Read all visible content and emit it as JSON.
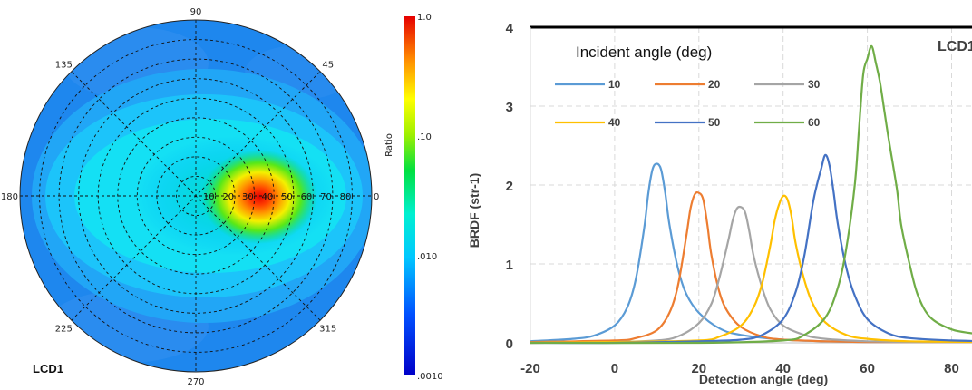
{
  "polar_plot": {
    "label": "LCD1",
    "angle_ticks": [
      {
        "angle": 90,
        "text": "90"
      },
      {
        "angle": 45,
        "text": "45"
      },
      {
        "angle": 0,
        "text": "0"
      },
      {
        "angle": 315,
        "text": "315"
      },
      {
        "angle": 270,
        "text": "270"
      },
      {
        "angle": 225,
        "text": "225"
      },
      {
        "angle": 180,
        "text": "180"
      },
      {
        "angle": 135,
        "text": "135"
      }
    ],
    "ring_labels": [
      "10",
      "20",
      "30",
      "40",
      "50",
      "60",
      "70",
      "80"
    ],
    "colorbar": {
      "title": "Ratio",
      "scale": "log",
      "range": [
        0.001,
        1.0
      ],
      "ticks": [
        {
          "value": 1.0,
          "text": "1.0"
        },
        {
          "value": 0.1,
          "text": ".10"
        },
        {
          "value": 0.01,
          "text": ".010"
        },
        {
          "value": 0.001,
          "text": ".0010"
        }
      ]
    },
    "hotspot": {
      "azimuth_deg": 0,
      "polar_deg": 30,
      "peak_ratio": 1.0
    },
    "background_ratio": 0.005
  },
  "chart_data": {
    "type": "line",
    "title": "",
    "corner_label": "LCD1",
    "xlabel": "Detection angle (deg)",
    "ylabel": "BRDF (str-1)",
    "xlim": [
      -20,
      90
    ],
    "ylim": [
      0,
      4
    ],
    "xticks": [
      "-20",
      "0",
      "20",
      "40",
      "60",
      "80"
    ],
    "yticks": [
      "0",
      "1",
      "2",
      "3",
      "4"
    ],
    "grid": true,
    "legend_title": "Incident angle (deg)",
    "legend_position": "top-left",
    "series": [
      {
        "name": "10",
        "color": "#5b9bd5",
        "x": [
          -20,
          -10,
          -5,
          0,
          3,
          5,
          7,
          8,
          9,
          10,
          11,
          12,
          13,
          15,
          17,
          20,
          25,
          30,
          40,
          50,
          60,
          70,
          80,
          90
        ],
        "y": [
          0.02,
          0.05,
          0.09,
          0.22,
          0.45,
          0.8,
          1.45,
          1.9,
          2.2,
          2.27,
          2.2,
          1.9,
          1.5,
          0.95,
          0.62,
          0.38,
          0.18,
          0.1,
          0.04,
          0.02,
          0.01,
          0.01,
          0.01,
          0.01
        ]
      },
      {
        "name": "20",
        "color": "#ed7d31",
        "x": [
          -20,
          0,
          5,
          10,
          13,
          15,
          17,
          18,
          19,
          20,
          21,
          22,
          23,
          25,
          27,
          30,
          35,
          40,
          50,
          60,
          70,
          90
        ],
        "y": [
          0.01,
          0.03,
          0.06,
          0.16,
          0.38,
          0.72,
          1.35,
          1.7,
          1.88,
          1.9,
          1.82,
          1.5,
          1.1,
          0.62,
          0.38,
          0.2,
          0.08,
          0.04,
          0.02,
          0.01,
          0.01,
          0.01
        ]
      },
      {
        "name": "30",
        "color": "#a5a5a5",
        "x": [
          -20,
          0,
          10,
          15,
          20,
          23,
          25,
          27,
          28,
          29,
          30,
          31,
          32,
          33,
          35,
          37,
          40,
          45,
          50,
          60,
          70,
          90
        ],
        "y": [
          0.0,
          0.01,
          0.03,
          0.08,
          0.25,
          0.5,
          0.85,
          1.3,
          1.55,
          1.7,
          1.72,
          1.65,
          1.4,
          1.1,
          0.7,
          0.42,
          0.22,
          0.1,
          0.05,
          0.02,
          0.01,
          0.01
        ]
      },
      {
        "name": "40",
        "color": "#ffc000",
        "x": [
          -20,
          0,
          20,
          25,
          30,
          33,
          35,
          37,
          38,
          39,
          40,
          41,
          42,
          43,
          45,
          47,
          50,
          55,
          60,
          70,
          90
        ],
        "y": [
          0.0,
          0.01,
          0.03,
          0.08,
          0.22,
          0.45,
          0.75,
          1.25,
          1.55,
          1.75,
          1.86,
          1.82,
          1.6,
          1.25,
          0.8,
          0.5,
          0.26,
          0.1,
          0.05,
          0.02,
          0.01
        ]
      },
      {
        "name": "50",
        "color": "#4472c4",
        "x": [
          -20,
          0,
          20,
          30,
          35,
          40,
          43,
          45,
          47,
          48,
          49,
          50,
          51,
          52,
          53,
          55,
          57,
          60,
          65,
          70,
          80,
          90
        ],
        "y": [
          0.0,
          0.0,
          0.02,
          0.04,
          0.1,
          0.3,
          0.65,
          1.1,
          1.75,
          2.0,
          2.2,
          2.38,
          2.25,
          1.9,
          1.5,
          0.95,
          0.6,
          0.3,
          0.12,
          0.06,
          0.03,
          0.02
        ]
      },
      {
        "name": "60",
        "color": "#70ad47",
        "x": [
          -20,
          20,
          40,
          45,
          50,
          53,
          55,
          57,
          58,
          59,
          60,
          61,
          62,
          63,
          64,
          65,
          67,
          68,
          70,
          72,
          75,
          80,
          85,
          90
        ],
        "y": [
          0.0,
          0.0,
          0.03,
          0.1,
          0.32,
          0.7,
          1.2,
          2.0,
          2.7,
          3.4,
          3.6,
          3.76,
          3.55,
          3.3,
          2.95,
          2.6,
          1.95,
          1.5,
          1.0,
          0.6,
          0.32,
          0.17,
          0.12,
          0.08
        ]
      }
    ]
  }
}
